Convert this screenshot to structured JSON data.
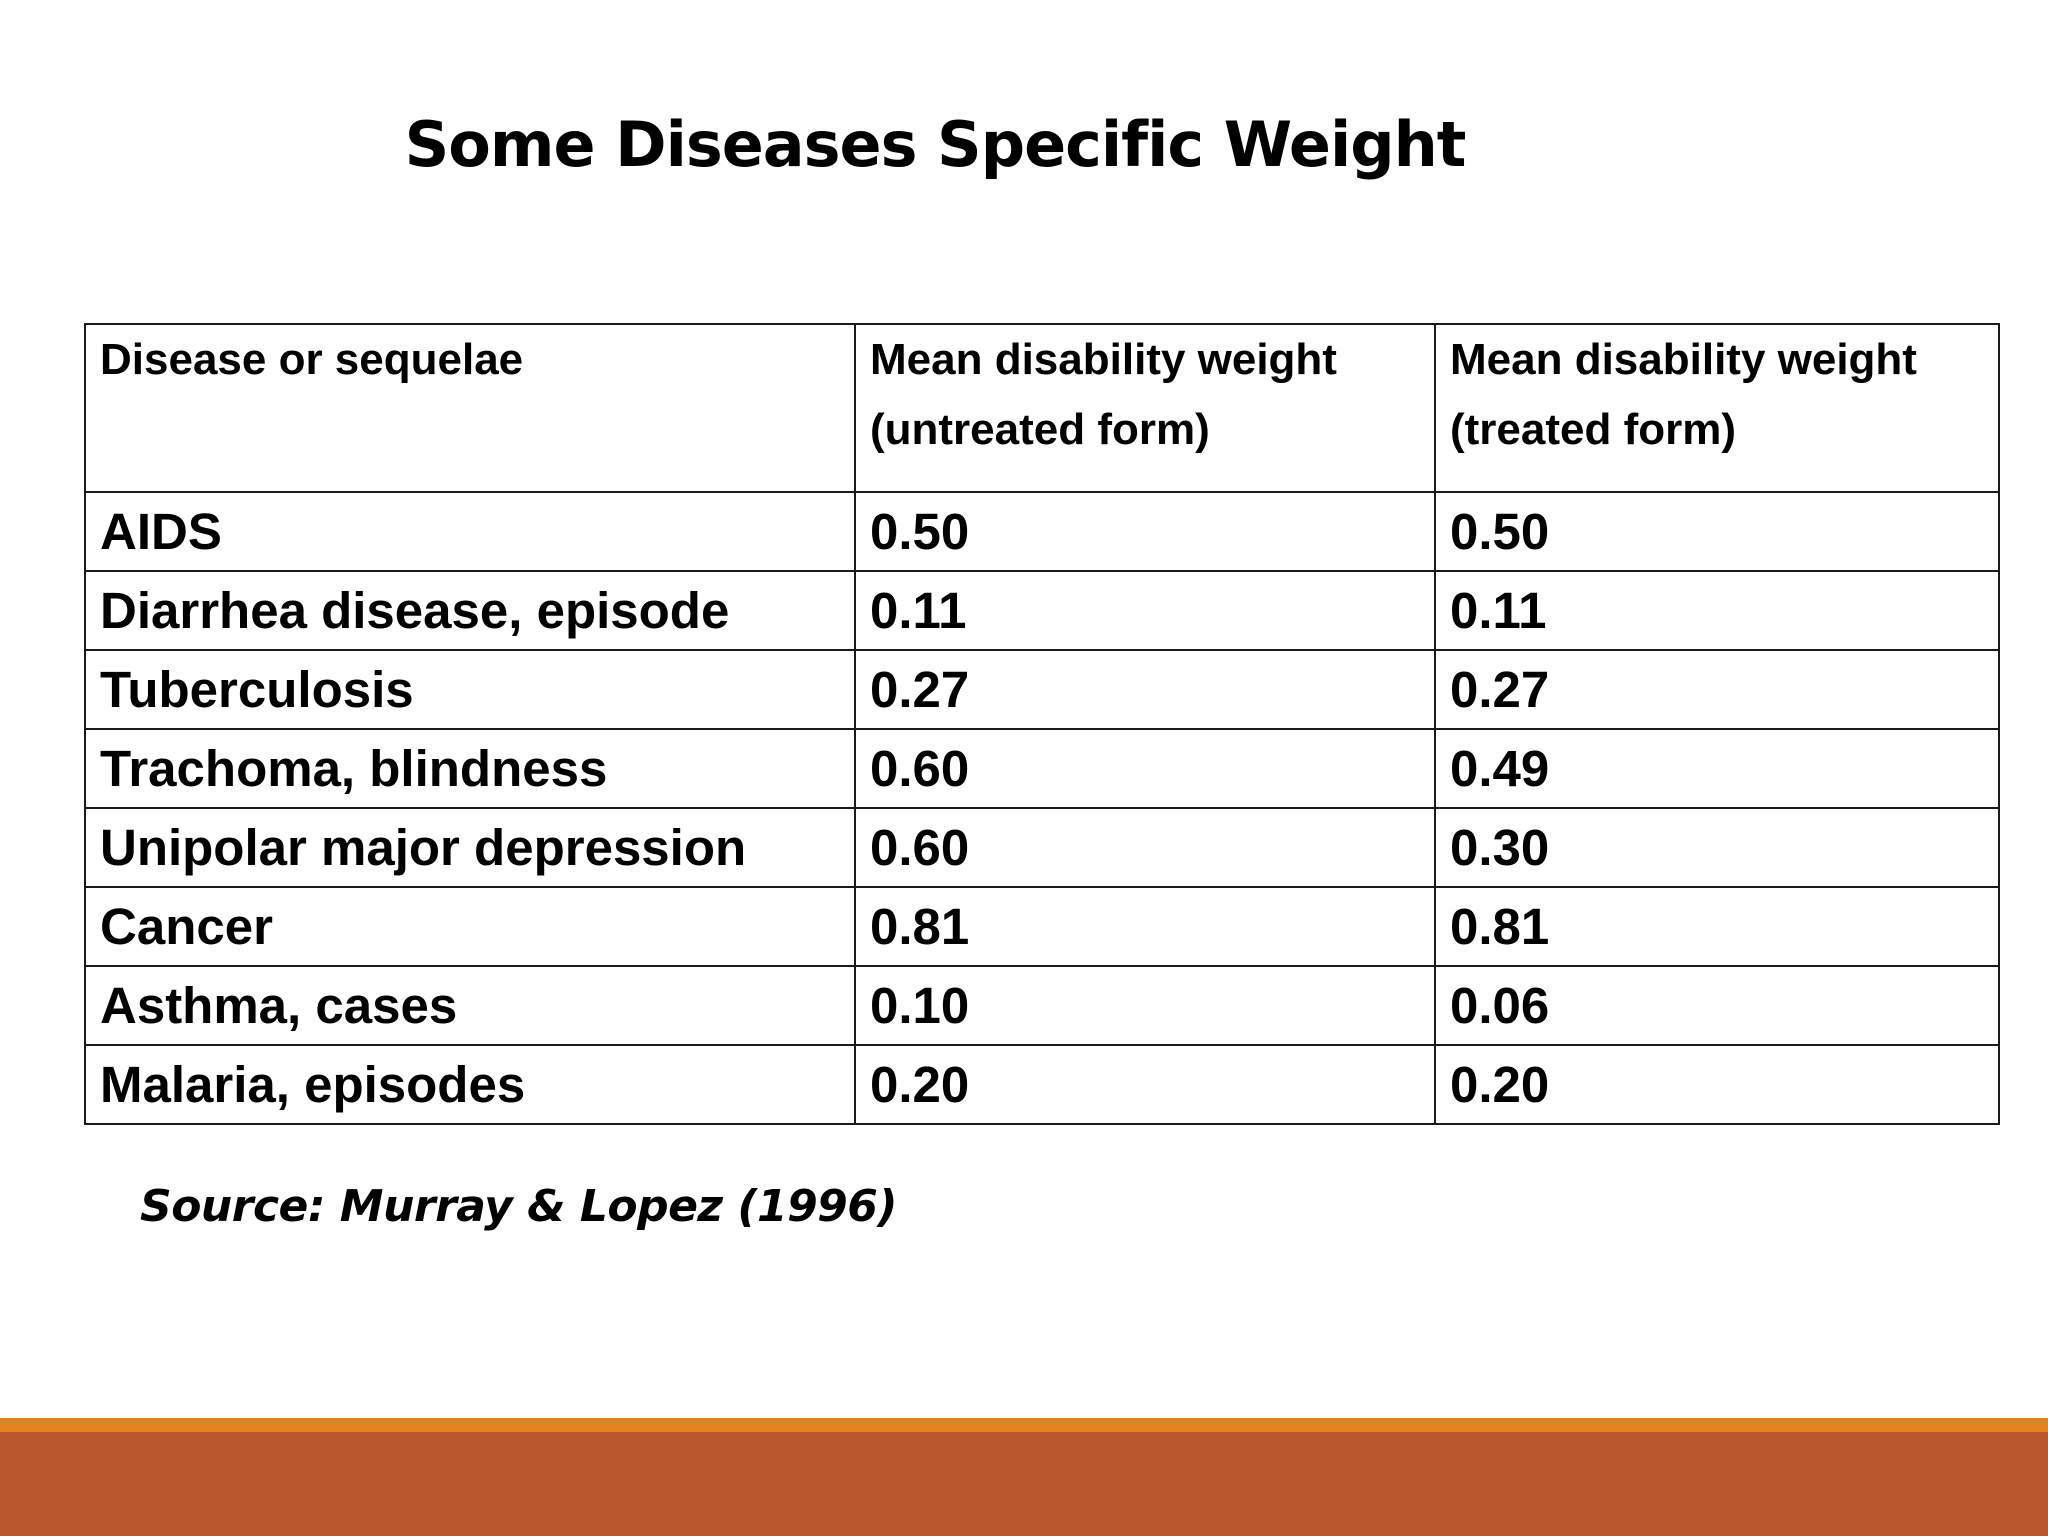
{
  "slide": {
    "title": "Some Diseases Specific Weight",
    "source": "Source: Murray & Lopez (1996)"
  },
  "table": {
    "headers": [
      "Disease or sequelae",
      "Mean disability weight (untreated form)",
      "Mean disability weight (treated form)"
    ],
    "rows": [
      [
        "AIDS",
        "0.50",
        "0.50"
      ],
      [
        "Diarrhea disease, episode",
        "0.11",
        "0.11"
      ],
      [
        "Tuberculosis",
        "0.27",
        "0.27"
      ],
      [
        "Trachoma, blindness",
        "0.60",
        "0.49"
      ],
      [
        "Unipolar major depression",
        "0.60",
        "0.30"
      ],
      [
        "Cancer",
        "0.81",
        "0.81"
      ],
      [
        "Asthma, cases",
        "0.10",
        "0.06"
      ],
      [
        "Malaria, episodes",
        "0.20",
        "0.20"
      ]
    ]
  },
  "colors": {
    "footer_stripe": "#e3821f",
    "footer_band": "#b9582f",
    "table_border": "#1a1a1a"
  }
}
